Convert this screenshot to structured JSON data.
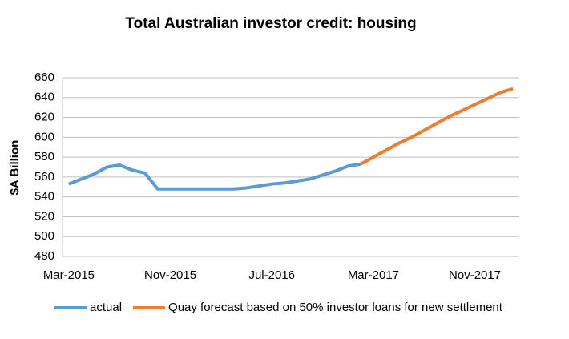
{
  "chart_data": {
    "type": "line",
    "title": "Total Australian investor credit: housing",
    "y_label": "$A Billion",
    "categories": [
      "Mar-2015",
      null,
      null,
      null,
      null,
      null,
      null,
      null,
      "Nov-2015",
      null,
      null,
      null,
      null,
      null,
      null,
      null,
      "Jul-2016",
      null,
      null,
      null,
      null,
      null,
      null,
      null,
      "Mar-2017",
      null,
      null,
      null,
      null,
      null,
      null,
      null,
      "Nov-2017",
      null,
      null,
      null
    ],
    "series": [
      {
        "name": "actual",
        "color": "#5b9bd5",
        "values": [
          553,
          558,
          563,
          570,
          572,
          567,
          564,
          548,
          548,
          548,
          548,
          548,
          548,
          548,
          549,
          551,
          553,
          554,
          556,
          558,
          562,
          566,
          571,
          573,
          null,
          null,
          null,
          null,
          null,
          null,
          null,
          null,
          null,
          null,
          null,
          null
        ]
      },
      {
        "name": "Quay forecast based on 50% investor loans for new settlement",
        "color": "#ed7d31",
        "values": [
          null,
          null,
          null,
          null,
          null,
          null,
          null,
          null,
          null,
          null,
          null,
          null,
          null,
          null,
          null,
          null,
          null,
          null,
          null,
          null,
          null,
          null,
          null,
          573,
          580,
          587,
          594,
          600,
          607,
          614,
          621,
          627,
          633,
          639,
          645,
          649
        ]
      }
    ],
    "ylim": [
      480,
      660
    ],
    "yticks": [
      480,
      500,
      520,
      540,
      560,
      580,
      600,
      620,
      640,
      660
    ],
    "grid": true,
    "legend": "bottom"
  }
}
